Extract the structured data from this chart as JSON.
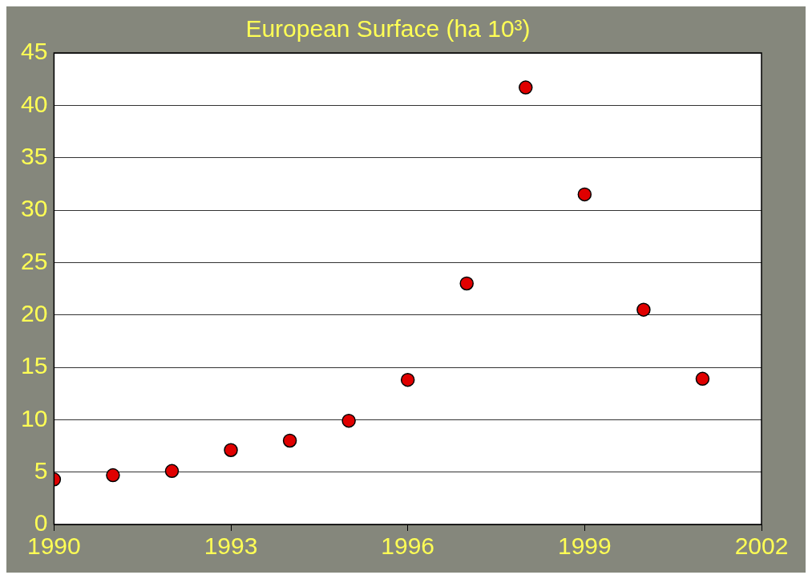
{
  "chart_data": {
    "type": "scatter",
    "title": "European Surface (ha 10³)",
    "x": [
      1990,
      1991,
      1992,
      1993,
      1994,
      1995,
      1996,
      1997,
      1998,
      1999,
      2000,
      2001
    ],
    "series": [
      {
        "color": "#e00000",
        "values": [
          4.3,
          4.7,
          5.1,
          7.1,
          8.0,
          9.9,
          13.8,
          23.0,
          41.7,
          31.5,
          20.5,
          13.9
        ]
      }
    ],
    "xlim": [
      1990,
      2002
    ],
    "xticks": [
      1990,
      1993,
      1996,
      1999,
      2002
    ],
    "ylim": [
      0,
      45
    ],
    "yticks": [
      0,
      5,
      10,
      15,
      20,
      25,
      30,
      35,
      40,
      45
    ],
    "grid": "y",
    "legend": false,
    "marker": "circle"
  }
}
